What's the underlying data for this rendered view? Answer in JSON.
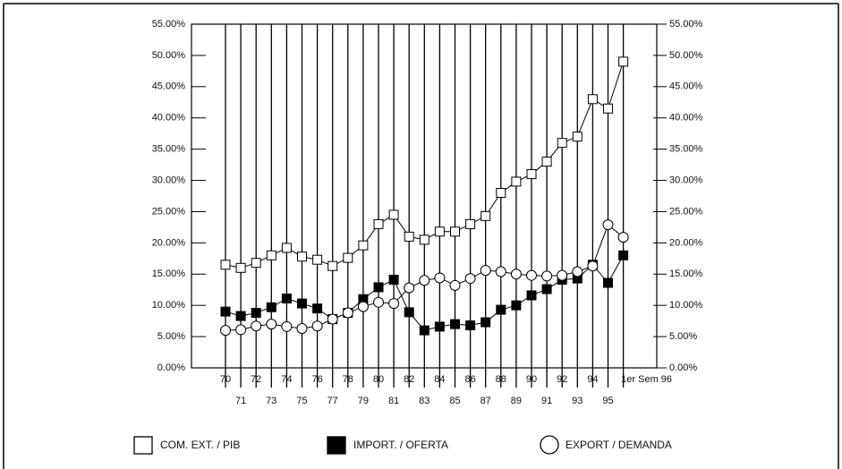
{
  "chart_data": {
    "type": "line",
    "categories": [
      "70",
      "71",
      "72",
      "73",
      "74",
      "75",
      "76",
      "77",
      "78",
      "79",
      "80",
      "81",
      "82",
      "83",
      "84",
      "85",
      "86",
      "87",
      "88",
      "89",
      "90",
      "91",
      "92",
      "93",
      "94",
      "95",
      "1er Sem 96"
    ],
    "series": [
      {
        "name": "COM. EXT. / PIB",
        "color": "#ffffff",
        "marker": "square",
        "values": [
          16.5,
          16,
          16.8,
          18,
          19.2,
          17.8,
          17.3,
          16.3,
          17.6,
          19.6,
          23,
          24.5,
          21,
          20.5,
          21.8,
          21.8,
          23,
          24.3,
          28,
          29.8,
          31,
          33,
          36,
          37,
          43,
          41.5,
          49
        ]
      },
      {
        "name": "IMPORT. / OFERTA",
        "color": "#000000",
        "marker": "square",
        "values": [
          9,
          8.3,
          8.8,
          9.7,
          11.1,
          10.3,
          9.5,
          7.8,
          8.8,
          11,
          12.9,
          14.1,
          8.9,
          6,
          6.6,
          7,
          6.8,
          7.3,
          9.3,
          10,
          11.6,
          12.6,
          14.1,
          14.3,
          16.5,
          13.6,
          18
        ]
      },
      {
        "name": "EXPORT / DEMANDA",
        "color": "#ffffff",
        "marker": "circle",
        "values": [
          6,
          6.1,
          6.7,
          7,
          6.6,
          6.3,
          6.7,
          7.8,
          8.8,
          9.8,
          10.5,
          10.3,
          12.8,
          14,
          14.4,
          13.2,
          14.3,
          15.6,
          15.4,
          15,
          14.8,
          14.7,
          14.8,
          15.4,
          16.3,
          22.9,
          20.9
        ]
      }
    ],
    "ylim": [
      0,
      55
    ],
    "yticks": [
      {
        "value": 0,
        "label": "0.00%"
      },
      {
        "value": 5,
        "label": "5.00%"
      },
      {
        "value": 10,
        "label": "10.00%"
      },
      {
        "value": 15,
        "label": "15.00%"
      },
      {
        "value": 20,
        "label": "20.00%"
      },
      {
        "value": 25,
        "label": "25.00%"
      },
      {
        "value": 30,
        "label": "30.00%"
      },
      {
        "value": 35,
        "label": "35.00%"
      },
      {
        "value": 40,
        "label": "40.00%"
      },
      {
        "value": 45,
        "label": "45.00%"
      },
      {
        "value": 50,
        "label": "50.00%"
      },
      {
        "value": 55,
        "label": "55.00%"
      }
    ],
    "y2lim": [
      0,
      55
    ],
    "y2ticks": [
      {
        "value": 0,
        "label": "0.00%"
      },
      {
        "value": 5,
        "label": "5.00%"
      },
      {
        "value": 10,
        "label": "10.00%"
      },
      {
        "value": 15,
        "label": "15.00%"
      },
      {
        "value": 20,
        "label": "20.00%"
      },
      {
        "value": 25,
        "label": "25.00%"
      },
      {
        "value": 30,
        "label": "30.00%"
      },
      {
        "value": 35,
        "label": "35.00%"
      },
      {
        "value": 40,
        "label": "40.00%"
      },
      {
        "value": 45,
        "label": "45.00%"
      },
      {
        "value": 50,
        "label": "50.00%"
      },
      {
        "value": 55,
        "label": "55.00%"
      }
    ]
  }
}
